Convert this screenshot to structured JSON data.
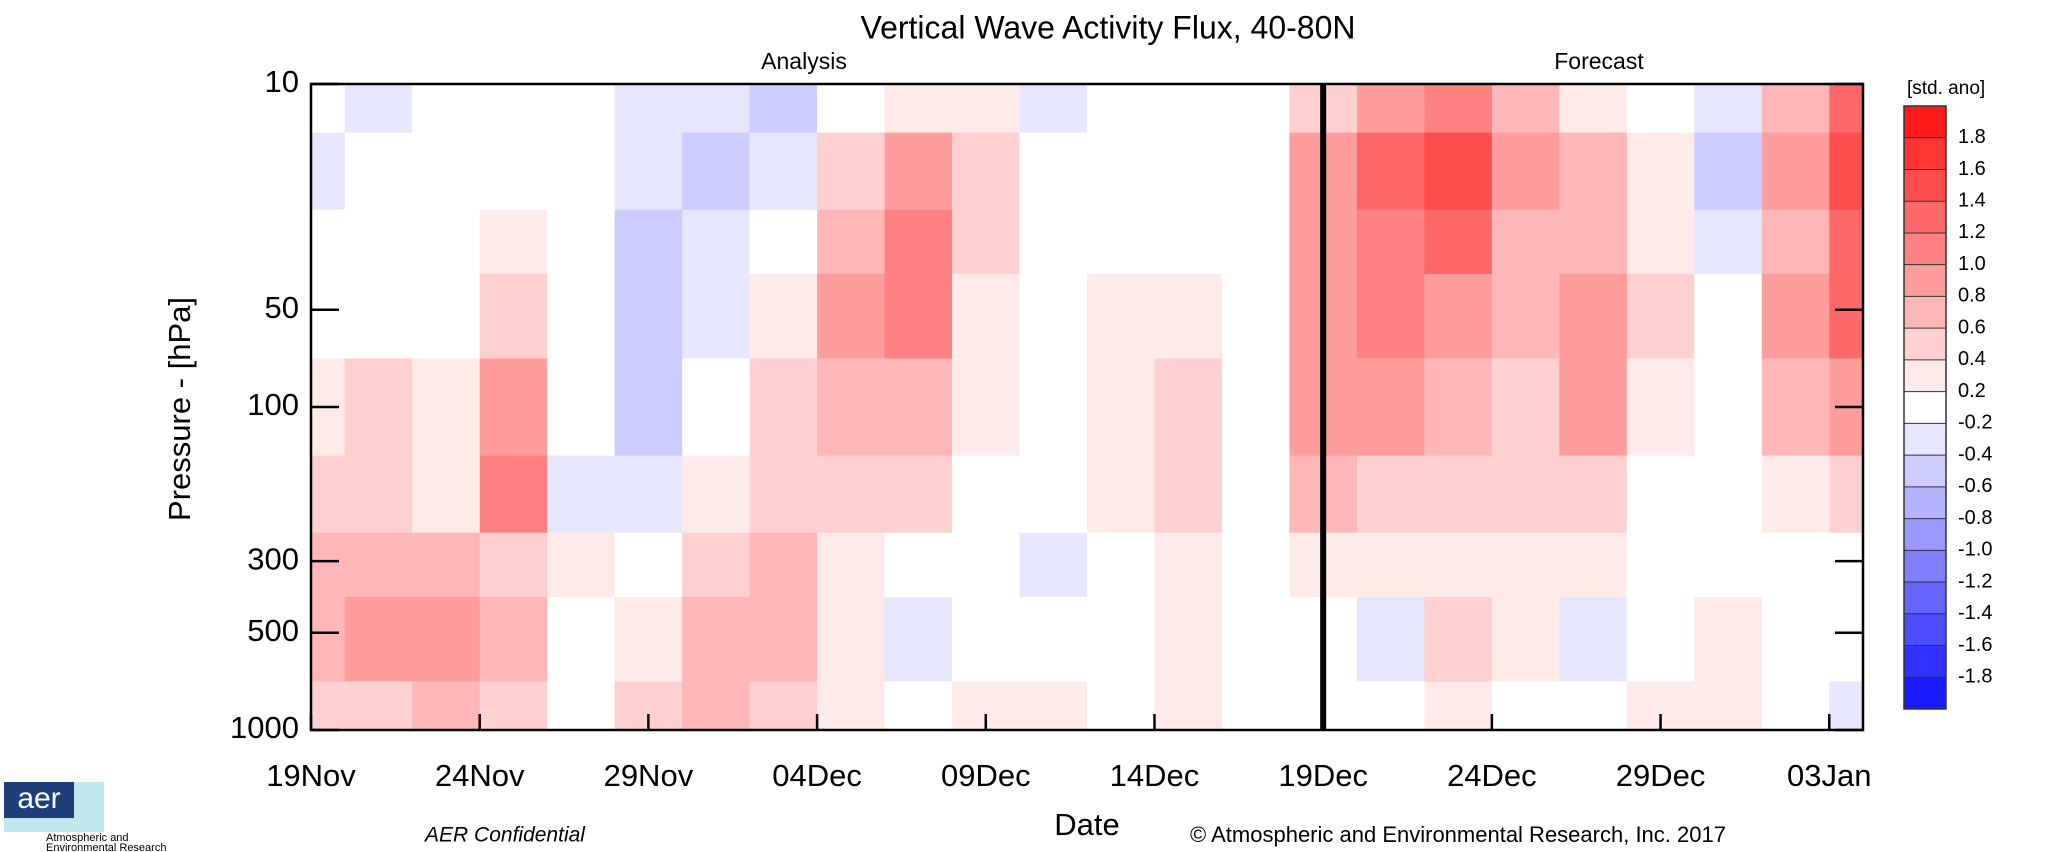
{
  "chart_data": {
    "type": "contour",
    "title": "Vertical Wave Activity Flux, 40-80N",
    "panel_titles": [
      "Analysis",
      "Forecast"
    ],
    "xlabel": "Date",
    "ylabel": "Pressure - [hPa]",
    "colorbar_label": "[std. ano]",
    "footer_left": "AER Confidential",
    "footer_right": "© Atmospheric and Environmental Research, Inc. 2017",
    "logo": {
      "mark": "aer",
      "lines": [
        "Atmospheric and",
        "Environmental Research"
      ]
    },
    "xlim": [
      0,
      46
    ],
    "xticks": [
      {
        "value": 0,
        "label": "19Nov"
      },
      {
        "value": 5,
        "label": "24Nov"
      },
      {
        "value": 10,
        "label": "29Nov"
      },
      {
        "value": 15,
        "label": "04Dec"
      },
      {
        "value": 20,
        "label": "09Dec"
      },
      {
        "value": 25,
        "label": "14Dec"
      },
      {
        "value": 30,
        "label": "19Dec"
      },
      {
        "value": 35,
        "label": "24Dec"
      },
      {
        "value": 40,
        "label": "29Dec"
      },
      {
        "value": 45,
        "label": "03Jan"
      }
    ],
    "forecast_start": 30,
    "ylim": [
      10,
      1000
    ],
    "ylog": true,
    "yreversed": true,
    "yticks": [
      10,
      50,
      100,
      300,
      500,
      1000
    ],
    "x": [
      0,
      2,
      4,
      6,
      8,
      10,
      12,
      14,
      16,
      18,
      20,
      22,
      24,
      26,
      28,
      30,
      32,
      34,
      36,
      38,
      40,
      42,
      44,
      46
    ],
    "y": [
      10,
      20,
      30,
      50,
      100,
      200,
      300,
      500,
      1000
    ],
    "z": [
      [
        0,
        -0.3,
        0,
        0,
        0.3,
        0.4,
        0.6,
        0.6,
        0.4
      ],
      [
        -0.3,
        0,
        0,
        0,
        0.5,
        0.4,
        0.7,
        0.8,
        0.5
      ],
      [
        0,
        0,
        0,
        0,
        0.2,
        0.2,
        0.6,
        0.8,
        0.7
      ],
      [
        0,
        0,
        0.3,
        0.5,
        0.9,
        1.0,
        0.4,
        0.6,
        0.4
      ],
      [
        0,
        0,
        0,
        0,
        0,
        -0.3,
        0.3,
        0,
        0
      ],
      [
        -0.4,
        -0.4,
        -0.5,
        -0.6,
        -0.6,
        -0.3,
        0,
        0.3,
        0.4
      ],
      [
        -0.4,
        -0.5,
        -0.3,
        -0.3,
        -0.2,
        0.3,
        0.4,
        0.6,
        0.6
      ],
      [
        -0.6,
        -0.3,
        0,
        0.3,
        0.4,
        0.5,
        0.6,
        0.6,
        0.5
      ],
      [
        0,
        0.5,
        0.7,
        0.8,
        0.6,
        0.5,
        0.3,
        0.3,
        0.3
      ],
      [
        0.3,
        0.9,
        1.0,
        1.0,
        0.6,
        0.4,
        0,
        -0.3,
        0
      ],
      [
        0.2,
        0.4,
        0.4,
        0.3,
        0.3,
        0,
        0,
        0,
        0.3
      ],
      [
        -0.3,
        0,
        0,
        0,
        0,
        0,
        -0.3,
        0,
        0.3
      ],
      [
        0,
        0,
        0,
        0.3,
        0.3,
        0.3,
        0,
        0,
        0
      ],
      [
        -0.2,
        0,
        0,
        0.3,
        0.5,
        0.5,
        0.3,
        0.3,
        0.2
      ],
      [
        0,
        0,
        0,
        0,
        0,
        0,
        0,
        0,
        0
      ],
      [
        0.5,
        0.8,
        0.9,
        0.9,
        0.8,
        0.6,
        0.3,
        0,
        0
      ],
      [
        0.9,
        1.2,
        1.1,
        1.0,
        0.8,
        0.5,
        0.3,
        -0.3,
        0
      ],
      [
        1.0,
        1.5,
        1.2,
        0.9,
        0.6,
        0.4,
        0.3,
        0.4,
        0.3
      ],
      [
        0.6,
        0.8,
        0.7,
        0.6,
        0.5,
        0.4,
        0.3,
        0.3,
        0
      ],
      [
        0.3,
        0.6,
        0.6,
        0.9,
        0.8,
        0.4,
        0.2,
        -0.3,
        0
      ],
      [
        0,
        0.3,
        0.3,
        0.4,
        0.3,
        0,
        0,
        0,
        0.3
      ],
      [
        -0.3,
        -0.6,
        -0.3,
        0,
        0,
        0,
        0,
        0.3,
        0.3
      ],
      [
        0.6,
        0.8,
        0.7,
        0.8,
        0.6,
        0.3,
        0,
        0,
        0
      ],
      [
        1.2,
        1.4,
        1.3,
        1.2,
        0.8,
        0.5,
        0,
        0,
        -0.3
      ]
    ],
    "levels": [
      1.8,
      1.6,
      1.4,
      1.2,
      {
        "value": 1,
        "label": "1.0"
      },
      0.8,
      0.6,
      0.4,
      0.2,
      -0.2,
      -0.4,
      -0.6,
      -0.8,
      {
        "value": -1,
        "label": "-1.0"
      },
      -1.2,
      -1.4,
      -1.6,
      -1.8
    ],
    "colors": [
      "#ff1a1a",
      "#ff3434",
      "#ff4e4e",
      "#ff6868",
      "#ff8282",
      "#ff9c9c",
      "#ffb6b6",
      "#ffd0d0",
      "#ffeaea",
      "#ffffff",
      "#e6e6ff",
      "#ccccff",
      "#b3b3ff",
      "#9999ff",
      "#8080ff",
      "#6666ff",
      "#4d4dff",
      "#3333ff",
      "#1a1aff"
    ]
  }
}
